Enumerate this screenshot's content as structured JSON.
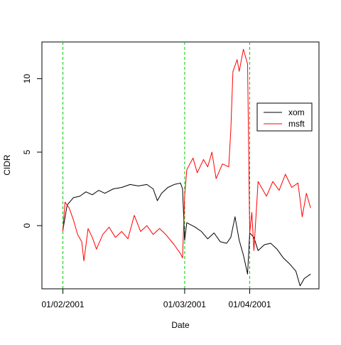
{
  "chart_data": {
    "type": "line",
    "title": "",
    "xlabel": "Date",
    "ylabel": "CIDR",
    "x_axis": {
      "kind": "date",
      "range": [
        "2001-01-02",
        "2001-04-30"
      ],
      "ticks": [
        {
          "value": "2001-01-02",
          "label": "01/02/2001"
        },
        {
          "value": "2001-03-01",
          "label": "01/03/2001"
        },
        {
          "value": "2001-04-01",
          "label": "01/04/2001"
        }
      ]
    },
    "y_axis": {
      "range": [
        -4.3,
        12.5
      ],
      "ticks": [
        0,
        5,
        10
      ]
    },
    "grid": false,
    "reference_lines": {
      "orientation": "vertical",
      "color": "#00cc00",
      "style": "dashed",
      "x": [
        "2001-01-02",
        "2001-03-01",
        "2001-04-01"
      ]
    },
    "legend": {
      "placement": "right",
      "entries": [
        {
          "label": "xom",
          "color": "#000000"
        },
        {
          "label": "msft",
          "color": "#ff0000"
        }
      ]
    },
    "series": [
      {
        "name": "xom",
        "color": "#000000",
        "points": [
          [
            "2001-01-02",
            -0.3
          ],
          [
            "2001-01-04",
            1.4
          ],
          [
            "2001-01-07",
            1.9
          ],
          [
            "2001-01-10",
            2.0
          ],
          [
            "2001-01-13",
            2.3
          ],
          [
            "2001-01-16",
            2.1
          ],
          [
            "2001-01-19",
            2.4
          ],
          [
            "2001-01-22",
            2.2
          ],
          [
            "2001-01-26",
            2.5
          ],
          [
            "2001-01-30",
            2.6
          ],
          [
            "2001-02-03",
            2.8
          ],
          [
            "2001-02-07",
            2.7
          ],
          [
            "2001-02-11",
            2.8
          ],
          [
            "2001-02-14",
            2.5
          ],
          [
            "2001-02-16",
            1.7
          ],
          [
            "2001-02-18",
            2.2
          ],
          [
            "2001-02-21",
            2.6
          ],
          [
            "2001-02-24",
            2.8
          ],
          [
            "2001-02-27",
            2.9
          ],
          [
            "2001-02-28",
            2.5
          ],
          [
            "2001-03-01",
            -1.0
          ],
          [
            "2001-03-02",
            0.2
          ],
          [
            "2001-03-06",
            -0.1
          ],
          [
            "2001-03-09",
            -0.4
          ],
          [
            "2001-03-12",
            -0.9
          ],
          [
            "2001-03-15",
            -0.5
          ],
          [
            "2001-03-18",
            -1.1
          ],
          [
            "2001-03-21",
            -1.2
          ],
          [
            "2001-03-23",
            -0.8
          ],
          [
            "2001-03-25",
            0.6
          ],
          [
            "2001-03-27",
            -1.0
          ],
          [
            "2001-03-29",
            -2.0
          ],
          [
            "2001-03-31",
            -3.3
          ],
          [
            "2001-04-01",
            -0.5
          ],
          [
            "2001-04-03",
            -0.8
          ],
          [
            "2001-04-05",
            -1.7
          ],
          [
            "2001-04-08",
            -1.3
          ],
          [
            "2001-04-11",
            -1.2
          ],
          [
            "2001-04-14",
            -1.6
          ],
          [
            "2001-04-17",
            -2.2
          ],
          [
            "2001-04-20",
            -2.6
          ],
          [
            "2001-04-23",
            -3.1
          ],
          [
            "2001-04-25",
            -4.1
          ],
          [
            "2001-04-27",
            -3.6
          ],
          [
            "2001-04-30",
            -3.3
          ]
        ]
      },
      {
        "name": "msft",
        "color": "#ff0000",
        "points": [
          [
            "2001-01-02",
            -0.4
          ],
          [
            "2001-01-03",
            1.6
          ],
          [
            "2001-01-05",
            1.2
          ],
          [
            "2001-01-07",
            0.4
          ],
          [
            "2001-01-09",
            -0.6
          ],
          [
            "2001-01-11",
            -1.1
          ],
          [
            "2001-01-12",
            -2.4
          ],
          [
            "2001-01-14",
            -0.2
          ],
          [
            "2001-01-16",
            -0.8
          ],
          [
            "2001-01-18",
            -1.6
          ],
          [
            "2001-01-21",
            -0.6
          ],
          [
            "2001-01-24",
            -0.1
          ],
          [
            "2001-01-27",
            -0.8
          ],
          [
            "2001-01-30",
            -0.4
          ],
          [
            "2001-02-02",
            -0.9
          ],
          [
            "2001-02-05",
            0.7
          ],
          [
            "2001-02-08",
            -0.4
          ],
          [
            "2001-02-11",
            0.0
          ],
          [
            "2001-02-14",
            -0.6
          ],
          [
            "2001-02-17",
            -0.2
          ],
          [
            "2001-02-20",
            -0.6
          ],
          [
            "2001-02-24",
            -1.3
          ],
          [
            "2001-02-27",
            -1.9
          ],
          [
            "2001-02-28",
            -2.2
          ],
          [
            "2001-03-01",
            2.0
          ],
          [
            "2001-03-02",
            3.8
          ],
          [
            "2001-03-05",
            4.6
          ],
          [
            "2001-03-07",
            3.6
          ],
          [
            "2001-03-10",
            4.5
          ],
          [
            "2001-03-12",
            4.0
          ],
          [
            "2001-03-14",
            5.0
          ],
          [
            "2001-03-16",
            3.2
          ],
          [
            "2001-03-19",
            4.2
          ],
          [
            "2001-03-22",
            4.0
          ],
          [
            "2001-03-23",
            6.5
          ],
          [
            "2001-03-24",
            10.5
          ],
          [
            "2001-03-26",
            11.3
          ],
          [
            "2001-03-27",
            10.5
          ],
          [
            "2001-03-29",
            12.0
          ],
          [
            "2001-03-31",
            11.0
          ],
          [
            "2001-04-01",
            -0.5
          ],
          [
            "2001-04-02",
            0.9
          ],
          [
            "2001-04-03",
            -1.7
          ],
          [
            "2001-04-05",
            3.0
          ],
          [
            "2001-04-07",
            2.5
          ],
          [
            "2001-04-09",
            2.0
          ],
          [
            "2001-04-12",
            3.0
          ],
          [
            "2001-04-15",
            2.4
          ],
          [
            "2001-04-18",
            3.5
          ],
          [
            "2001-04-21",
            2.6
          ],
          [
            "2001-04-24",
            2.9
          ],
          [
            "2001-04-26",
            0.6
          ],
          [
            "2001-04-28",
            2.2
          ],
          [
            "2001-04-30",
            1.2
          ]
        ]
      }
    ]
  }
}
